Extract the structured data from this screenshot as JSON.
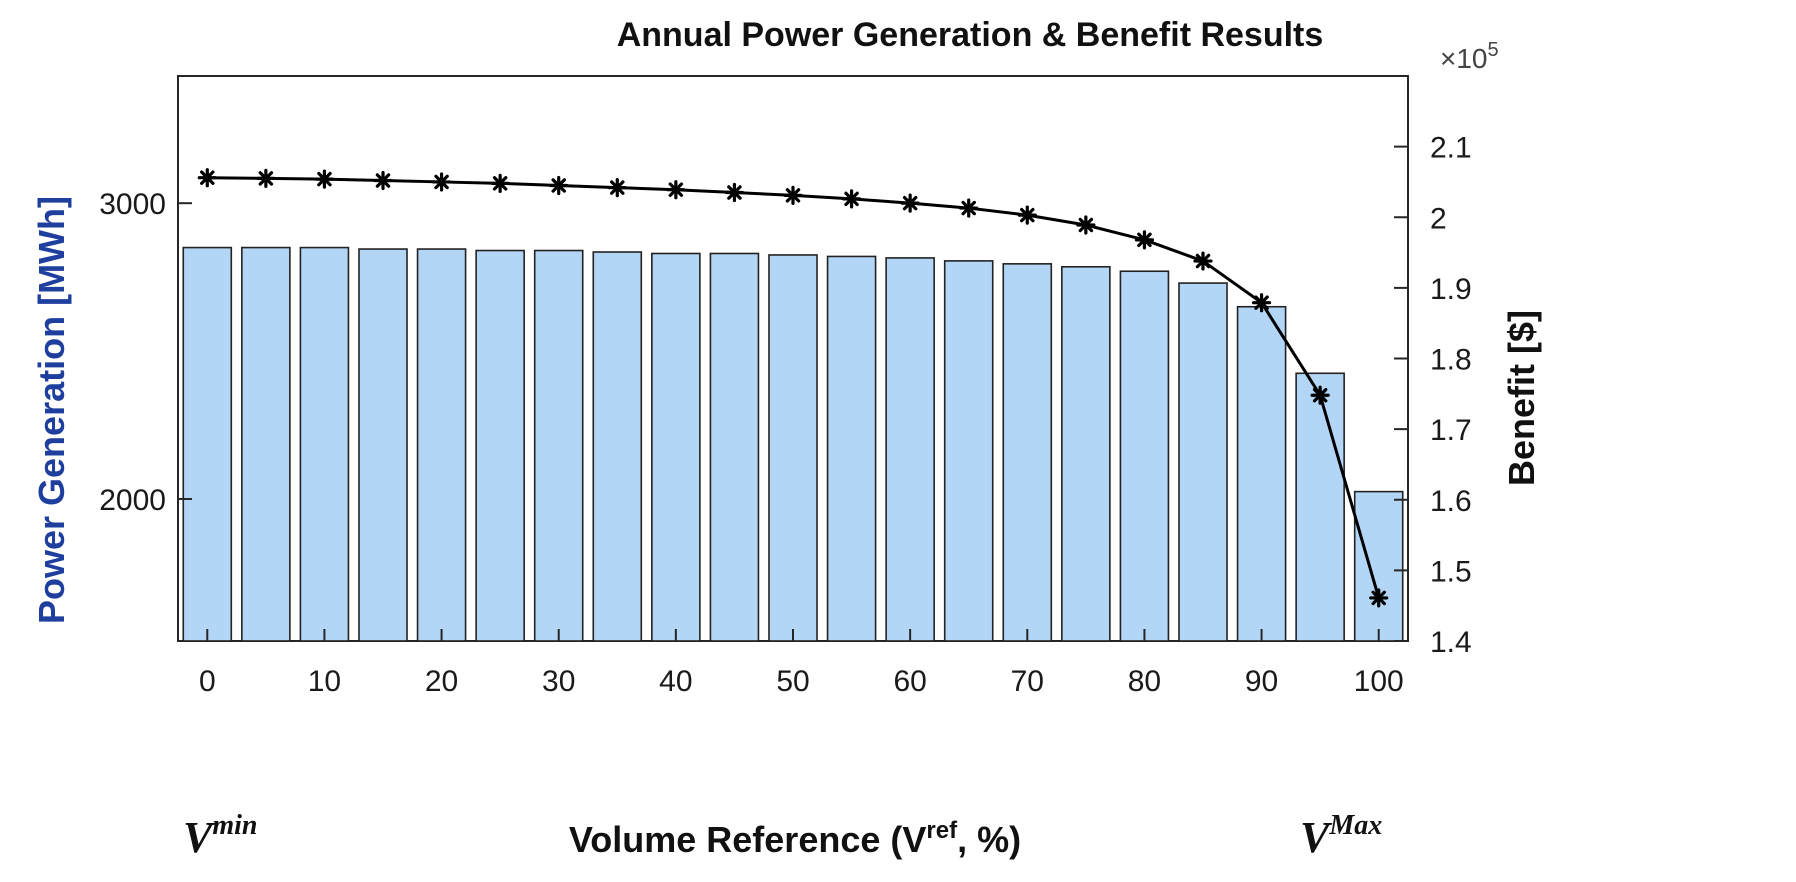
{
  "chart_data": {
    "type": "bar",
    "title": "Annual Power Generation & Benefit Results",
    "xlabel": {
      "main": "Volume Reference (V",
      "sup": "ref",
      "suffix": ", %)"
    },
    "ylabel_left": "Power Generation [MWh]",
    "ylabel_right": "Benefit [$]",
    "x_multiplier": "×10",
    "x_multiplier_exp": "5",
    "categories": [
      0,
      5,
      10,
      15,
      20,
      25,
      30,
      35,
      40,
      45,
      50,
      55,
      60,
      65,
      70,
      75,
      80,
      85,
      90,
      95,
      100
    ],
    "x_tick_labels": [
      "0",
      "10",
      "20",
      "30",
      "40",
      "50",
      "60",
      "70",
      "80",
      "90",
      "100"
    ],
    "x_tick_values": [
      0,
      10,
      20,
      30,
      40,
      50,
      60,
      70,
      80,
      90,
      100
    ],
    "vmin_label": "V",
    "vmin_sup": "min",
    "vmax_label": "V",
    "vmax_sup": "Max",
    "series": [
      {
        "name": "Power Generation",
        "axis": "left",
        "type": "bar",
        "color": "#b3d6f6",
        "edge": "#222222",
        "values": [
          2850,
          2850,
          2850,
          2845,
          2845,
          2840,
          2840,
          2835,
          2830,
          2830,
          2825,
          2820,
          2815,
          2805,
          2795,
          2785,
          2770,
          2730,
          2650,
          2425,
          2025
        ]
      },
      {
        "name": "Benefit",
        "axis": "right",
        "type": "line",
        "marker": "asterisk",
        "color": "#000000",
        "values": [
          2.056,
          2.055,
          2.054,
          2.052,
          2.05,
          2.048,
          2.045,
          2.042,
          2.039,
          2.035,
          2.031,
          2.026,
          2.02,
          2.013,
          2.003,
          1.989,
          1.968,
          1.938,
          1.879,
          1.748,
          1.461
        ]
      }
    ],
    "ylim_left": [
      1520,
      3430
    ],
    "ylim_right": [
      1.4,
      2.2
    ],
    "yticks_left": [
      2000,
      3000
    ],
    "yticks_left_labels": [
      "2000",
      "3000"
    ],
    "yticks_right": [
      1.4,
      1.5,
      1.6,
      1.7,
      1.8,
      1.9,
      2.0,
      2.1
    ],
    "yticks_right_labels": [
      "1.4",
      "1.5",
      "1.6",
      "1.7",
      "1.8",
      "1.9",
      "2",
      "2.1"
    ],
    "grid": false
  }
}
